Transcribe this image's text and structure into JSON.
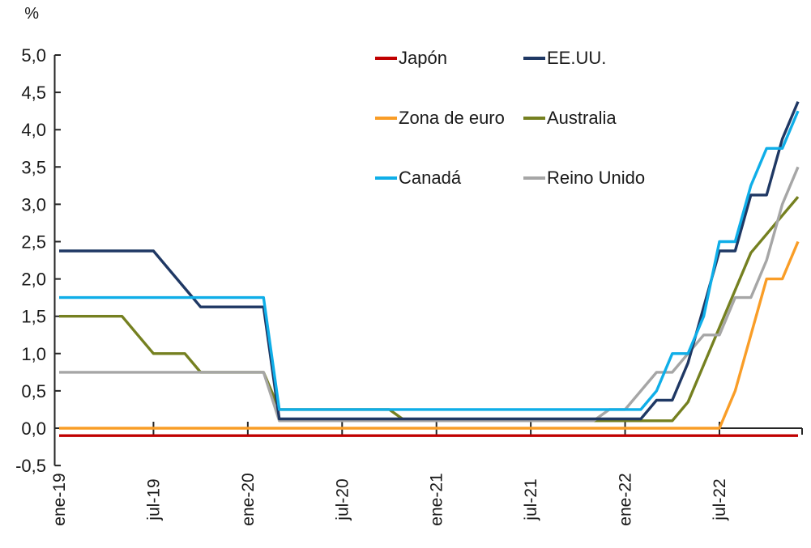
{
  "chart_data": {
    "type": "line",
    "title": "",
    "ylabel": "%",
    "xlabel": "",
    "ylim": [
      -0.5,
      5.0
    ],
    "y_tick_values": [
      5.0,
      4.5,
      4.0,
      3.5,
      3.0,
      2.5,
      2.0,
      1.5,
      1.0,
      0.5,
      0.0,
      -0.5
    ],
    "y_tick_labels": [
      "5,0",
      "4,5",
      "4,0",
      "3,5",
      "3,0",
      "2,5",
      "2,0",
      "1,5",
      "1,0",
      "0,5",
      "0,0",
      "-0,5"
    ],
    "x_months_start": "ene-19",
    "x_months_end": "dic-22",
    "n_points": 48,
    "x_tick_month_indices": [
      0,
      6,
      12,
      18,
      24,
      30,
      36,
      42
    ],
    "x_tick_labels": [
      "ene-19",
      "jul-19",
      "ene-20",
      "jul-20",
      "ene-21",
      "jul-21",
      "ene-22",
      "jul-22"
    ],
    "grid": false,
    "legend_position": "top-center-inside",
    "legend_columns": 2,
    "series": [
      {
        "name": "Japón",
        "color": "#C00000",
        "values": [
          -0.1,
          -0.1,
          -0.1,
          -0.1,
          -0.1,
          -0.1,
          -0.1,
          -0.1,
          -0.1,
          -0.1,
          -0.1,
          -0.1,
          -0.1,
          -0.1,
          -0.1,
          -0.1,
          -0.1,
          -0.1,
          -0.1,
          -0.1,
          -0.1,
          -0.1,
          -0.1,
          -0.1,
          -0.1,
          -0.1,
          -0.1,
          -0.1,
          -0.1,
          -0.1,
          -0.1,
          -0.1,
          -0.1,
          -0.1,
          -0.1,
          -0.1,
          -0.1,
          -0.1,
          -0.1,
          -0.1,
          -0.1,
          -0.1,
          -0.1,
          -0.1,
          -0.1,
          -0.1,
          -0.1,
          -0.1
        ]
      },
      {
        "name": "EE.UU.",
        "color": "#1F3864",
        "values": [
          2.375,
          2.375,
          2.375,
          2.375,
          2.375,
          2.375,
          2.375,
          2.125,
          1.875,
          1.625,
          1.625,
          1.625,
          1.625,
          1.625,
          0.125,
          0.125,
          0.125,
          0.125,
          0.125,
          0.125,
          0.125,
          0.125,
          0.125,
          0.125,
          0.125,
          0.125,
          0.125,
          0.125,
          0.125,
          0.125,
          0.125,
          0.125,
          0.125,
          0.125,
          0.125,
          0.125,
          0.125,
          0.125,
          0.375,
          0.375,
          0.875,
          1.625,
          2.375,
          2.375,
          3.125,
          3.125,
          3.875,
          4.375
        ]
      },
      {
        "name": "Zona de euro",
        "color": "#F99D27",
        "values": [
          0,
          0,
          0,
          0,
          0,
          0,
          0,
          0,
          0,
          0,
          0,
          0,
          0,
          0,
          0,
          0,
          0,
          0,
          0,
          0,
          0,
          0,
          0,
          0,
          0,
          0,
          0,
          0,
          0,
          0,
          0,
          0,
          0,
          0,
          0,
          0,
          0,
          0,
          0,
          0,
          0,
          0,
          0,
          0.5,
          1.25,
          2.0,
          2.0,
          2.5
        ]
      },
      {
        "name": "Australia",
        "color": "#758020",
        "values": [
          1.5,
          1.5,
          1.5,
          1.5,
          1.5,
          1.25,
          1.0,
          1.0,
          1.0,
          0.75,
          0.75,
          0.75,
          0.75,
          0.75,
          0.25,
          0.25,
          0.25,
          0.25,
          0.25,
          0.25,
          0.25,
          0.25,
          0.1,
          0.1,
          0.1,
          0.1,
          0.1,
          0.1,
          0.1,
          0.1,
          0.1,
          0.1,
          0.1,
          0.1,
          0.1,
          0.1,
          0.1,
          0.1,
          0.1,
          0.1,
          0.35,
          0.85,
          1.35,
          1.85,
          2.35,
          2.6,
          2.85,
          3.1
        ]
      },
      {
        "name": "Canadá",
        "color": "#0FAEE8",
        "values": [
          1.75,
          1.75,
          1.75,
          1.75,
          1.75,
          1.75,
          1.75,
          1.75,
          1.75,
          1.75,
          1.75,
          1.75,
          1.75,
          1.75,
          0.25,
          0.25,
          0.25,
          0.25,
          0.25,
          0.25,
          0.25,
          0.25,
          0.25,
          0.25,
          0.25,
          0.25,
          0.25,
          0.25,
          0.25,
          0.25,
          0.25,
          0.25,
          0.25,
          0.25,
          0.25,
          0.25,
          0.25,
          0.25,
          0.5,
          1.0,
          1.0,
          1.5,
          2.5,
          2.5,
          3.25,
          3.75,
          3.75,
          4.25
        ]
      },
      {
        "name": "Reino Unido",
        "color": "#A6A6A6",
        "values": [
          0.75,
          0.75,
          0.75,
          0.75,
          0.75,
          0.75,
          0.75,
          0.75,
          0.75,
          0.75,
          0.75,
          0.75,
          0.75,
          0.75,
          0.1,
          0.1,
          0.1,
          0.1,
          0.1,
          0.1,
          0.1,
          0.1,
          0.1,
          0.1,
          0.1,
          0.1,
          0.1,
          0.1,
          0.1,
          0.1,
          0.1,
          0.1,
          0.1,
          0.1,
          0.1,
          0.25,
          0.25,
          0.5,
          0.75,
          0.75,
          1.0,
          1.25,
          1.25,
          1.75,
          1.75,
          2.25,
          3.0,
          3.5
        ]
      }
    ]
  }
}
